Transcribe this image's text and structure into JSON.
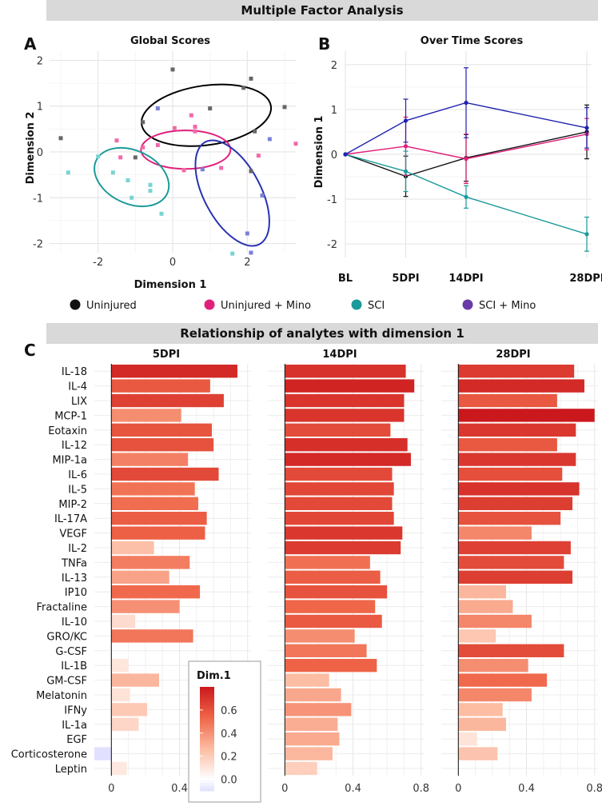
{
  "banner": {
    "top": "Multiple Factor Analysis",
    "middle": "Relationship of analytes with dimension 1"
  },
  "panel_letters": {
    "a": "A",
    "b": "B",
    "c": "C"
  },
  "legend": {
    "groups": [
      {
        "name": "Uninjured",
        "color": "#111111"
      },
      {
        "name": "Uninjured + Mino",
        "color": "#e0207a"
      },
      {
        "name": "SCI",
        "color": "#1a9a9a"
      },
      {
        "name": "SCI + Mino",
        "color": "#6a3aa8"
      }
    ]
  },
  "chart_data": [
    {
      "type": "scatter",
      "title": "Global Scores",
      "xlabel": "Dimension 1",
      "ylabel": "Dimension 2",
      "xlim": [
        -3.3,
        3.3
      ],
      "ylim": [
        -2.2,
        2.2
      ],
      "xticks": [
        -2,
        0,
        2
      ],
      "yticks": [
        -2,
        -1,
        0,
        1,
        2
      ],
      "grid": true,
      "series": [
        {
          "name": "Uninjured",
          "color": "#666666",
          "edge": "#000000",
          "points": [
            [
              -3.0,
              0.3
            ],
            [
              -0.8,
              0.65
            ],
            [
              0,
              1.8
            ],
            [
              1,
              0.95
            ],
            [
              1.9,
              1.4
            ],
            [
              2.1,
              1.6
            ],
            [
              2.2,
              0.45
            ],
            [
              3,
              0.98
            ],
            [
              2.1,
              -0.42
            ],
            [
              -1,
              -0.12
            ]
          ],
          "ellipse": {
            "cx": 0.9,
            "cy": 0.8,
            "rx": 1.75,
            "ry": 0.65,
            "angle": 8
          }
        },
        {
          "name": "Uninjured + Mino",
          "color": "#f06aa8",
          "edge": "#e0207a",
          "points": [
            [
              0.5,
              0.8
            ],
            [
              0.05,
              0.52
            ],
            [
              0.6,
              0.55
            ],
            [
              0.6,
              0.45
            ],
            [
              -0.4,
              0.15
            ],
            [
              -0.8,
              0.1
            ],
            [
              -1.5,
              0.25
            ],
            [
              -1.4,
              -0.12
            ],
            [
              0.3,
              -0.4
            ],
            [
              1.3,
              -0.35
            ],
            [
              3.3,
              0.18
            ],
            [
              2.3,
              -0.08
            ]
          ],
          "ellipse": {
            "cx": 0.35,
            "cy": 0.05,
            "rx": 1.2,
            "ry": 0.42,
            "angle": 0
          }
        },
        {
          "name": "SCI",
          "color": "#7ad3d3",
          "edge": "#1a9a9a",
          "points": [
            [
              -2.8,
              -0.45
            ],
            [
              -1.6,
              -0.45
            ],
            [
              -1.2,
              -0.62
            ],
            [
              -0.6,
              -0.72
            ],
            [
              -0.6,
              -0.85
            ],
            [
              -1.1,
              -1.0
            ],
            [
              -0.3,
              -1.35
            ],
            [
              1.6,
              -2.22
            ],
            [
              -2.0,
              -0.1
            ]
          ],
          "ellipse": {
            "cx": -1.1,
            "cy": -0.55,
            "rx": 1.05,
            "ry": 0.58,
            "angle": -25
          }
        },
        {
          "name": "SCI + Mino",
          "color": "#7a82d8",
          "edge": "#2a32b0",
          "points": [
            [
              -0.4,
              0.95
            ],
            [
              2.6,
              0.28
            ],
            [
              2.4,
              -0.95
            ],
            [
              2.0,
              -1.78
            ],
            [
              2.1,
              -2.2
            ],
            [
              0.8,
              -0.38
            ]
          ],
          "ellipse": {
            "cx": 1.6,
            "cy": -0.9,
            "rx": 1.55,
            "ry": 0.62,
            "angle": -62
          }
        }
      ]
    },
    {
      "type": "line",
      "title": "Over Time Scores",
      "xlabel": "",
      "ylabel": "Dimension 1",
      "categories": [
        "BL",
        "5DPI",
        "14DPI",
        "28DPI"
      ],
      "x": [
        0,
        7,
        14,
        28
      ],
      "ylim": [
        -2.3,
        2.3
      ],
      "yticks": [
        -2,
        -1,
        0,
        1,
        2
      ],
      "grid": true,
      "series": [
        {
          "name": "Uninjured",
          "color": "#111111",
          "values": [
            0,
            -0.49,
            -0.08,
            0.5
          ],
          "errors": [
            0,
            0.45,
            0.52,
            0.6
          ]
        },
        {
          "name": "Uninjured + Mino",
          "color": "#e0207a",
          "values": [
            0,
            0.18,
            -0.1,
            0.45
          ],
          "errors": [
            0,
            0.65,
            0.55,
            0.35
          ]
        },
        {
          "name": "SCI",
          "color": "#1a9a9a",
          "values": [
            0,
            -0.38,
            -0.95,
            -1.78
          ],
          "errors": [
            0,
            0.45,
            0.25,
            0.38
          ]
        },
        {
          "name": "SCI + Mino",
          "color": "#2222b0",
          "values": [
            0,
            0.75,
            1.15,
            0.59
          ],
          "errors": [
            0,
            0.48,
            0.78,
            0.45
          ]
        }
      ]
    },
    {
      "type": "bar",
      "orientation": "horizontal",
      "title": "Relationship of analytes with dimension 1",
      "categories": [
        "IL-18",
        "IL-4",
        "LIX",
        "MCP-1",
        "Eotaxin",
        "IL-12",
        "MIP-1a",
        "IL-6",
        "IL-5",
        "MIP-2",
        "IL-17A",
        "VEGF",
        "IL-2",
        "TNFa",
        "IL-13",
        "IP10",
        "Fractaline",
        "IL-10",
        "GRO/KC",
        "G-CSF",
        "IL-1B",
        "GM-CSF",
        "Melatonin",
        "IFNy",
        "IL-1a",
        "EGF",
        "Corticosterone",
        "Leptin"
      ],
      "xlim": [
        -0.1,
        0.82
      ],
      "xticks": [
        0,
        0.4,
        0.8
      ],
      "xtick_labels": [
        "0",
        "0.4",
        "0.8"
      ],
      "facets": [
        {
          "label": "5DPI",
          "values": [
            0.74,
            0.58,
            0.66,
            0.41,
            0.59,
            0.6,
            0.45,
            0.63,
            0.49,
            0.51,
            0.56,
            0.55,
            0.25,
            0.46,
            0.34,
            0.52,
            0.4,
            0.14,
            0.48,
            -0.01,
            0.1,
            0.28,
            0.11,
            0.21,
            0.16,
            0,
            -0.1,
            0.09
          ]
        },
        {
          "label": "14DPI",
          "values": [
            0.71,
            0.76,
            0.7,
            0.7,
            0.62,
            0.72,
            0.74,
            0.63,
            0.64,
            0.63,
            0.64,
            0.69,
            0.68,
            0.5,
            0.56,
            0.6,
            0.53,
            0.57,
            0.41,
            0.48,
            0.54,
            0.26,
            0.33,
            0.39,
            0.31,
            0.32,
            0.28,
            0.19
          ]
        },
        {
          "label": "28DPI",
          "values": [
            0.68,
            0.74,
            0.58,
            0.8,
            0.69,
            0.58,
            0.69,
            0.61,
            0.71,
            0.67,
            0.6,
            0.43,
            0.66,
            0.62,
            0.67,
            0.28,
            0.32,
            0.43,
            0.22,
            0.62,
            0.41,
            0.52,
            0.43,
            0.26,
            0.28,
            0.11,
            0.23,
            0.0
          ]
        }
      ],
      "colorbar": {
        "title": "Dim.1",
        "ticks": [
          0.6,
          0.4,
          0.2,
          0.0
        ],
        "tick_labels": [
          "0.6",
          "0.4",
          "0.2",
          "0.0"
        ],
        "min": -0.1,
        "max": 0.8
      }
    }
  ]
}
